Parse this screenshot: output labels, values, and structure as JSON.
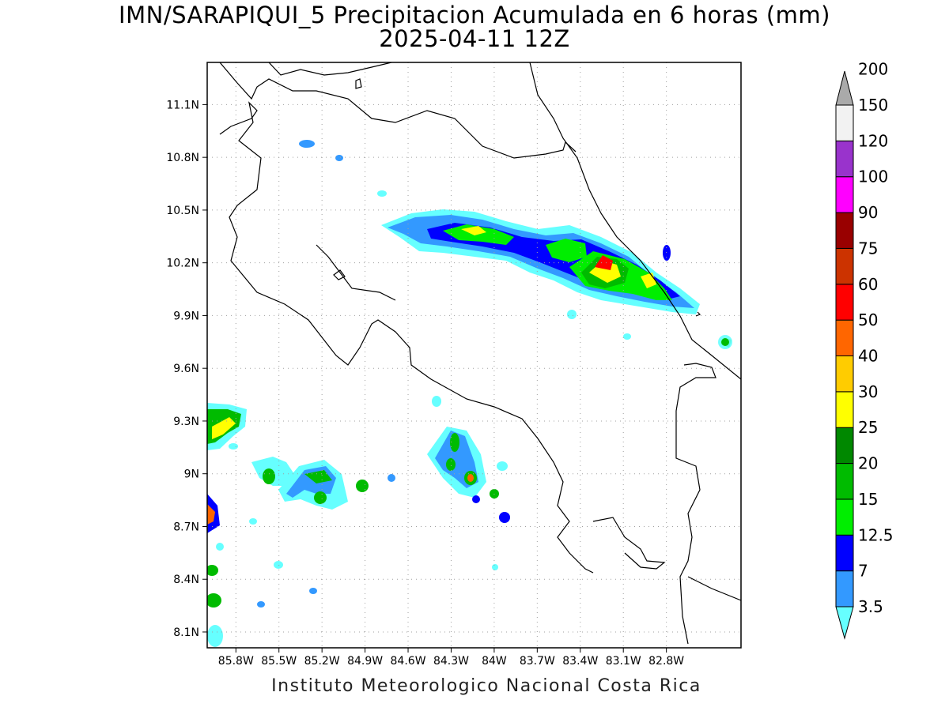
{
  "title": {
    "line1": "IMN/SARAPIQUI_5 Precipitacion Acumulada en 6 horas (mm)",
    "line2": "2025-04-11 12Z"
  },
  "footer": "Instituto Meteorologico Nacional Costa Rica",
  "map": {
    "lat_labels": [
      "11.1N",
      "10.8N",
      "10.5N",
      "10.2N",
      "9.9N",
      "9.6N",
      "9.3N",
      "9N",
      "8.7N",
      "8.4N",
      "8.1N"
    ],
    "lon_labels": [
      "85.8W",
      "85.5W",
      "85.2W",
      "84.9W",
      "84.6W",
      "84.3W",
      "84W",
      "83.7W",
      "83.4W",
      "83.1W",
      "82.8W"
    ],
    "lat_values": [
      11.1,
      10.8,
      10.5,
      10.2,
      9.9,
      9.6,
      9.3,
      9.0,
      8.7,
      8.4,
      8.1
    ],
    "lon_values": [
      -85.8,
      -85.5,
      -85.2,
      -84.9,
      -84.6,
      -84.3,
      -84.0,
      -83.7,
      -83.4,
      -83.1,
      -82.8
    ],
    "lat_range": [
      8.01,
      11.34
    ],
    "lon_range": [
      -86.0,
      -82.28
    ],
    "grid": true
  },
  "colorbar": {
    "labels": [
      "3.5",
      "7",
      "12.5",
      "15",
      "20",
      "25",
      "30",
      "40",
      "50",
      "60",
      "75",
      "90",
      "100",
      "120",
      "150",
      "200"
    ],
    "colors": [
      "#66ffff",
      "#3399ff",
      "#0000ff",
      "#00ee00",
      "#00bb00",
      "#008800",
      "#ffff00",
      "#ffcc00",
      "#ff6600",
      "#ff0000",
      "#cc3300",
      "#990000",
      "#ff00ff",
      "#9933cc",
      "#f2f2f2",
      "#aaaaaa"
    ]
  }
}
